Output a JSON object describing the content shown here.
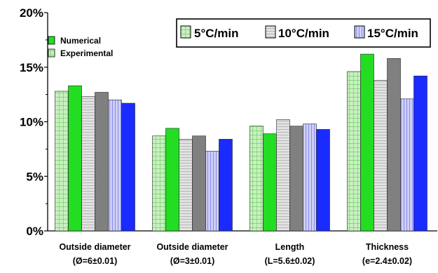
{
  "chart_data": {
    "type": "bar",
    "categories": [
      [
        "Outside diameter",
        "(Ø=6±0.01)"
      ],
      [
        "Outside diameter",
        "(Ø=3±0.01)"
      ],
      [
        "Length",
        "(L=5.6±0.02)"
      ],
      [
        "Thickness",
        "(e=2.4±0.02)"
      ]
    ],
    "ylim": [
      0,
      20
    ],
    "yticks": [
      "0%",
      "5%",
      "10%",
      "15%",
      "20%"
    ],
    "rate_legend": [
      "5°C/min",
      "10°C/min",
      "15°C/min"
    ],
    "type_legend": [
      "Numerical",
      "Experimental"
    ],
    "colors": {
      "exp_5": "#c8f0c0",
      "num_5": "#22dd22",
      "exp_10": "#dcdcdc",
      "num_10": "#808080",
      "exp_15": "#c8c8f4",
      "num_15": "#1a2bff"
    },
    "series": [
      {
        "rate": "5°C/min",
        "kind": "Experimental",
        "values": [
          12.8,
          8.7,
          9.6,
          14.6
        ]
      },
      {
        "rate": "5°C/min",
        "kind": "Numerical",
        "values": [
          13.3,
          9.4,
          8.9,
          16.2
        ]
      },
      {
        "rate": "10°C/min",
        "kind": "Experimental",
        "values": [
          12.3,
          8.4,
          10.2,
          13.8
        ]
      },
      {
        "rate": "10°C/min",
        "kind": "Numerical",
        "values": [
          12.7,
          8.7,
          9.6,
          15.8
        ]
      },
      {
        "rate": "15°C/min",
        "kind": "Experimental",
        "values": [
          12.0,
          7.3,
          9.8,
          12.1
        ]
      },
      {
        "rate": "15°C/min",
        "kind": "Numerical",
        "values": [
          11.7,
          8.4,
          9.3,
          14.2
        ]
      }
    ]
  }
}
